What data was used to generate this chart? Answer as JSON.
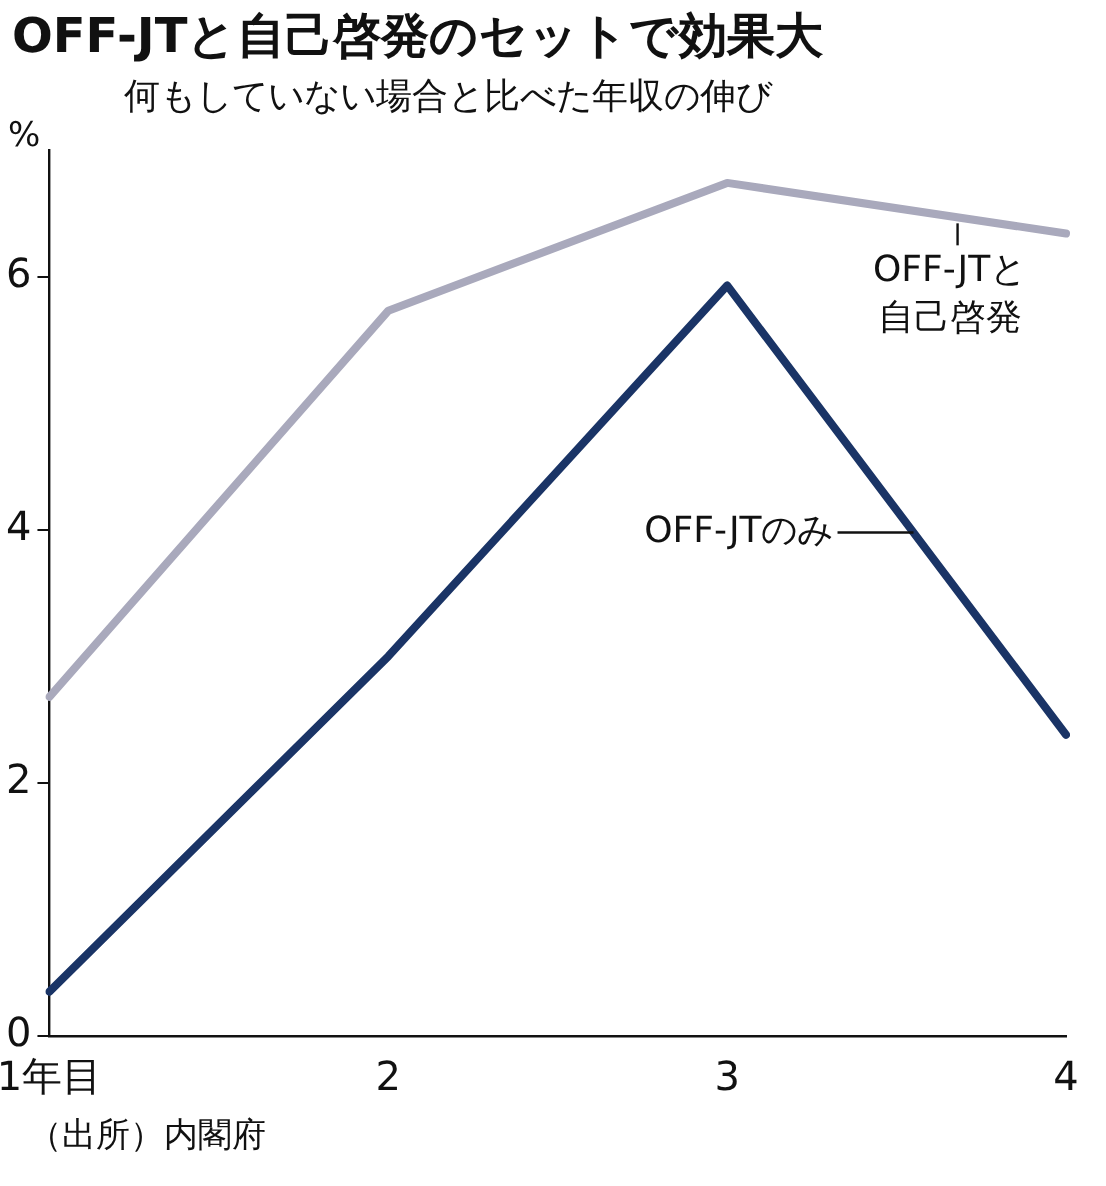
{
  "chart_data": {
    "type": "line",
    "title": "OFF-JTと自己啓発のセットで効果大",
    "subtitle": "何もしていない場合と比べた年収の伸び",
    "ylabel": "%",
    "categories": [
      "1年目",
      "2",
      "3",
      "4"
    ],
    "series": [
      {
        "name": "OFF-JTと自己啓発",
        "color": "#a9a9bc",
        "values": [
          2.68,
          5.73,
          6.74,
          6.34
        ]
      },
      {
        "name": "OFF-JTのみ",
        "color": "#1a3466",
        "values": [
          0.35,
          3.0,
          5.93,
          2.38
        ]
      }
    ],
    "ylim": [
      0,
      7
    ],
    "yticks": [
      0,
      2,
      4,
      6
    ],
    "grid": false,
    "legend": false,
    "marker": "none",
    "line_style": "solid",
    "annotations": [
      "（出所）内閣府"
    ]
  }
}
